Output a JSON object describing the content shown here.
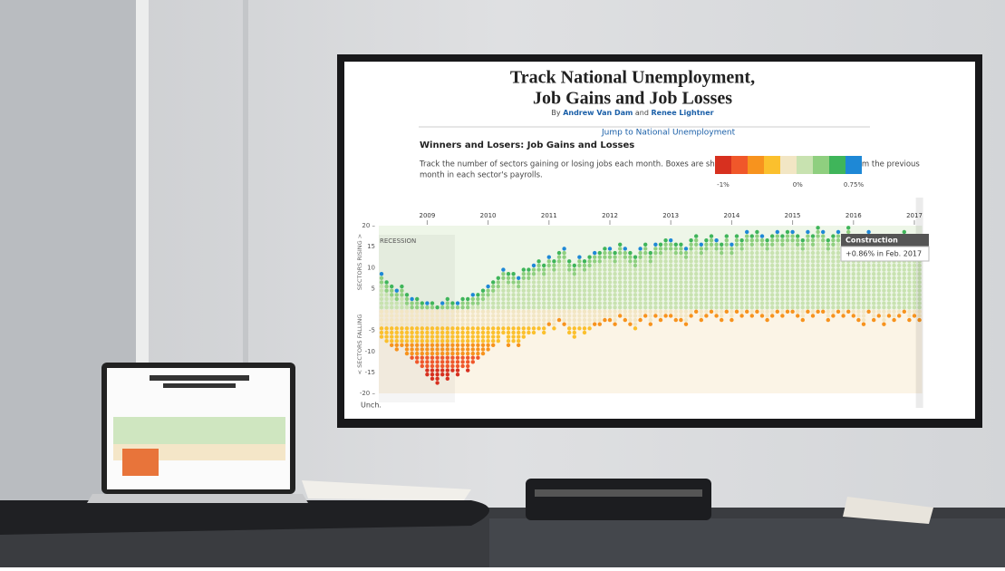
{
  "chart_data": {
    "type": "dot-column",
    "title": [
      "Track National Unemployment,",
      "Job Gains and Job Losses"
    ],
    "byline": {
      "prefix": "By",
      "author1": "Andrew Van Dam",
      "joiner": "and",
      "author2": "Renee Lightner"
    },
    "subtitle": "Winners and Losers: Job Gains and Losses",
    "link": "Jump to National Unemployment",
    "description": [
      "Track the number of sectors gaining or losing jobs each month. Boxes are shaded based on percentage change from the previous",
      "month in each sector's payrolls."
    ],
    "legend": {
      "colors": [
        "#d7301f",
        "#f0572a",
        "#f7931e",
        "#fbc02d",
        "#f2e6c4",
        "#c8e2b0",
        "#8fcf7f",
        "#3fb55a",
        "#1e88d6"
      ],
      "labels": [
        {
          "value": -1,
          "label": "-1%"
        },
        {
          "value": 0,
          "label": "0%"
        },
        {
          "value": 0.75,
          "label": "0.75%"
        }
      ]
    },
    "y_label_rising": "SECTORS RISING >",
    "y_label_falling": "< SECTORS FALLING",
    "unchanged_label": "Unch.",
    "recession_label": "RECESSION",
    "ylim": [
      -20,
      20
    ],
    "yticks": [
      {
        "value": 20,
        "label": "20 –"
      },
      15,
      10,
      5,
      -5,
      -10,
      -15,
      {
        "value": -20,
        "label": "-20 –"
      }
    ],
    "categories": [
      null,
      null,
      null,
      null,
      null,
      null,
      null,
      null,
      null,
      "2009",
      null,
      null,
      null,
      null,
      null,
      null,
      null,
      null,
      null,
      null,
      null,
      "2010",
      null,
      null,
      null,
      null,
      null,
      null,
      null,
      null,
      null,
      null,
      null,
      "2011",
      null,
      null,
      null,
      null,
      null,
      null,
      null,
      null,
      null,
      null,
      null,
      "2012",
      null,
      null,
      null,
      null,
      null,
      null,
      null,
      null,
      null,
      null,
      null,
      "2013",
      null,
      null,
      null,
      null,
      null,
      null,
      null,
      null,
      null,
      null,
      null,
      "2014",
      null,
      null,
      null,
      null,
      null,
      null,
      null,
      null,
      null,
      null,
      null,
      "2015",
      null,
      null,
      null,
      null,
      null,
      null,
      null,
      null,
      null,
      null,
      null,
      "2016",
      null,
      null,
      null,
      null,
      null,
      null,
      null,
      null,
      null,
      null,
      null,
      "2017",
      null
    ],
    "series": [
      {
        "name": "Sectors rising",
        "values": [
          9,
          7,
          6,
          5,
          6,
          4,
          3,
          3,
          2,
          2,
          2,
          1,
          2,
          3,
          2,
          2,
          3,
          3,
          4,
          4,
          5,
          6,
          7,
          8,
          10,
          9,
          9,
          8,
          10,
          10,
          11,
          12,
          11,
          13,
          12,
          14,
          15,
          12,
          11,
          13,
          12,
          13,
          14,
          14,
          15,
          15,
          14,
          16,
          15,
          14,
          13,
          15,
          16,
          14,
          16,
          16,
          17,
          17,
          16,
          16,
          15,
          17,
          18,
          16,
          17,
          18,
          17,
          16,
          18,
          16,
          18,
          17,
          19,
          18,
          19,
          18,
          17,
          18,
          19,
          18,
          19,
          19,
          18,
          17,
          19,
          18,
          20,
          19,
          17,
          18,
          19,
          18,
          20,
          18,
          17,
          16,
          19,
          17,
          18,
          16,
          18,
          17,
          18,
          19,
          17,
          18,
          17
        ]
      },
      {
        "name": "Sectors falling",
        "values": [
          -7,
          -8,
          -9,
          -10,
          -9,
          -11,
          -12,
          -13,
          -14,
          -16,
          -17,
          -18,
          -16,
          -17,
          -15,
          -16,
          -14,
          -15,
          -13,
          -12,
          -11,
          -10,
          -9,
          -8,
          -6,
          -9,
          -8,
          -9,
          -7,
          -6,
          -6,
          -5,
          -6,
          -4,
          -5,
          -3,
          -4,
          -6,
          -7,
          -5,
          -6,
          -5,
          -4,
          -4,
          -3,
          -3,
          -4,
          -2,
          -3,
          -4,
          -5,
          -3,
          -2,
          -4,
          -2,
          -3,
          -2,
          -2,
          -3,
          -3,
          -4,
          -2,
          -1,
          -3,
          -2,
          -1,
          -2,
          -3,
          -1,
          -3,
          -1,
          -2,
          -1,
          -2,
          -1,
          -2,
          -3,
          -2,
          -1,
          -2,
          -1,
          -1,
          -2,
          -3,
          -1,
          -2,
          -1,
          -1,
          -3,
          -2,
          -1,
          -2,
          -1,
          -2,
          -3,
          -4,
          -1,
          -3,
          -2,
          -4,
          -2,
          -3,
          -2,
          -1,
          -3,
          -2,
          -3
        ]
      }
    ],
    "tooltip": {
      "title": "Construction",
      "text": "+0.86% in Feb. 2017"
    }
  }
}
